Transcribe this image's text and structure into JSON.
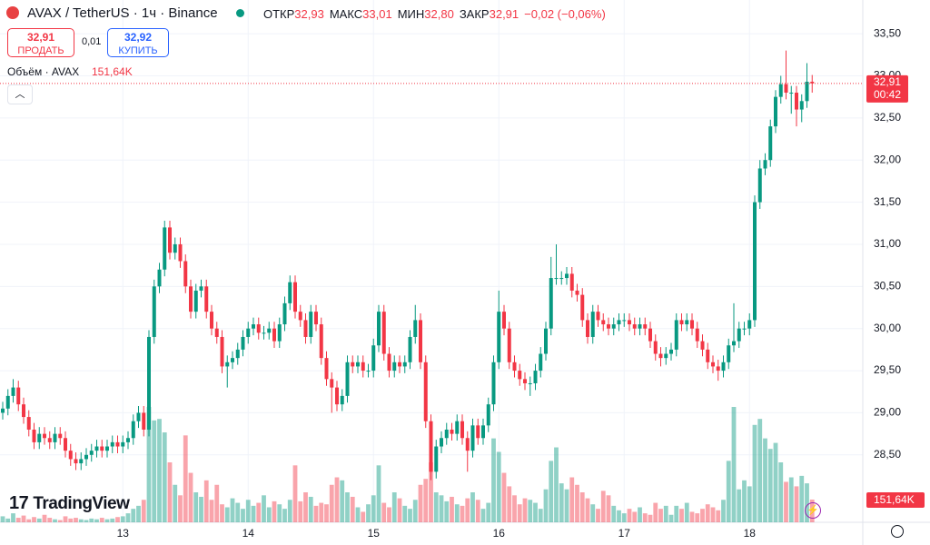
{
  "header": {
    "symbol": "AVAX / TetherUS · 1ч · Binance",
    "stats": [
      {
        "label": "ОТКР",
        "value": "32,93"
      },
      {
        "label": "МАКС",
        "value": "33,01"
      },
      {
        "label": "МИН",
        "value": "32,80"
      },
      {
        "label": "ЗАКР",
        "value": "32,91"
      }
    ],
    "change": "−0,02 (−0,06%)",
    "sell": {
      "price": "32,91",
      "label": "ПРОДАТЬ"
    },
    "spread": "0,01",
    "buy": {
      "price": "32,92",
      "label": "КУПИТЬ"
    },
    "volume_title": "Объём · AVAX",
    "volume_value": "151,64K"
  },
  "brand": "TradingView",
  "chart_data": {
    "type": "candlestick",
    "categories": [
      null,
      null,
      null,
      null,
      null,
      null,
      null,
      null,
      null,
      null,
      null,
      null,
      null,
      null,
      null,
      null,
      null,
      null,
      null,
      null,
      null,
      null,
      null,
      "13",
      null,
      null,
      null,
      null,
      null,
      null,
      null,
      null,
      null,
      null,
      null,
      null,
      null,
      null,
      null,
      null,
      null,
      null,
      null,
      null,
      null,
      null,
      null,
      "14",
      null,
      null,
      null,
      null,
      null,
      null,
      null,
      null,
      null,
      null,
      null,
      null,
      null,
      null,
      null,
      null,
      null,
      null,
      null,
      null,
      null,
      null,
      null,
      "15",
      null,
      null,
      null,
      null,
      null,
      null,
      null,
      null,
      null,
      null,
      null,
      null,
      null,
      null,
      null,
      null,
      null,
      null,
      null,
      null,
      null,
      null,
      null,
      "16",
      null,
      null,
      null,
      null,
      null,
      null,
      null,
      null,
      null,
      null,
      null,
      null,
      null,
      null,
      null,
      null,
      null,
      null,
      null,
      null,
      null,
      null,
      null,
      "17",
      null,
      null,
      null,
      null,
      null,
      null,
      null,
      null,
      null,
      null,
      null,
      null,
      null,
      null,
      null,
      null,
      null,
      null,
      null,
      null,
      null,
      null,
      null,
      "18",
      null,
      null,
      null,
      null,
      null,
      null,
      null,
      null,
      null,
      null,
      null,
      null
    ],
    "ohlc": [
      [
        29.0,
        29.13,
        28.92,
        29.05
      ],
      [
        29.05,
        29.28,
        28.97,
        29.2
      ],
      [
        29.2,
        29.4,
        29.12,
        29.3
      ],
      [
        29.3,
        29.38,
        29.02,
        29.1
      ],
      [
        29.1,
        29.18,
        28.87,
        28.95
      ],
      [
        28.95,
        29.03,
        28.72,
        28.8
      ],
      [
        28.8,
        28.88,
        28.57,
        28.65
      ],
      [
        28.65,
        28.83,
        28.57,
        28.75
      ],
      [
        28.75,
        28.83,
        28.62,
        28.7
      ],
      [
        28.7,
        28.78,
        28.57,
        28.65
      ],
      [
        28.65,
        28.83,
        28.57,
        28.75
      ],
      [
        28.75,
        28.83,
        28.62,
        28.7
      ],
      [
        28.7,
        28.78,
        28.47,
        28.55
      ],
      [
        28.55,
        28.63,
        28.37,
        28.45
      ],
      [
        28.45,
        28.53,
        28.32,
        28.4
      ],
      [
        28.4,
        28.53,
        28.32,
        28.45
      ],
      [
        28.45,
        28.58,
        28.37,
        28.5
      ],
      [
        28.5,
        28.63,
        28.42,
        28.55
      ],
      [
        28.55,
        28.68,
        28.47,
        28.6
      ],
      [
        28.6,
        28.68,
        28.47,
        28.55
      ],
      [
        28.55,
        28.68,
        28.47,
        28.6
      ],
      [
        28.6,
        28.73,
        28.52,
        28.65
      ],
      [
        28.65,
        28.73,
        28.52,
        28.6
      ],
      [
        28.6,
        28.73,
        28.52,
        28.65
      ],
      [
        28.65,
        28.78,
        28.57,
        28.7
      ],
      [
        28.7,
        28.98,
        28.62,
        28.9
      ],
      [
        28.9,
        29.08,
        28.82,
        29.0
      ],
      [
        29.0,
        29.08,
        28.72,
        28.8
      ],
      [
        28.8,
        29.98,
        28.72,
        29.9
      ],
      [
        29.9,
        30.58,
        29.82,
        30.5
      ],
      [
        30.5,
        30.78,
        30.42,
        30.7
      ],
      [
        30.7,
        31.28,
        30.62,
        31.2
      ],
      [
        31.2,
        31.28,
        30.82,
        30.9
      ],
      [
        30.9,
        31.08,
        30.82,
        31.0
      ],
      [
        31.0,
        31.08,
        30.72,
        30.8
      ],
      [
        30.8,
        30.88,
        30.42,
        30.5
      ],
      [
        30.5,
        30.58,
        30.12,
        30.2
      ],
      [
        30.2,
        30.53,
        30.12,
        30.45
      ],
      [
        30.45,
        30.58,
        30.37,
        30.5
      ],
      [
        30.5,
        30.58,
        30.12,
        30.2
      ],
      [
        30.2,
        30.28,
        29.92,
        30.0
      ],
      [
        30.0,
        30.08,
        29.82,
        29.9
      ],
      [
        29.9,
        29.98,
        29.47,
        29.55
      ],
      [
        29.55,
        29.68,
        29.3,
        29.6
      ],
      [
        29.6,
        29.73,
        29.52,
        29.65
      ],
      [
        29.65,
        29.83,
        29.57,
        29.75
      ],
      [
        29.75,
        29.98,
        29.67,
        29.9
      ],
      [
        29.9,
        30.08,
        29.82,
        30.0
      ],
      [
        30.0,
        30.13,
        29.92,
        30.05
      ],
      [
        30.05,
        30.13,
        29.87,
        29.95
      ],
      [
        29.95,
        30.03,
        29.87,
        29.95
      ],
      [
        29.95,
        30.08,
        29.87,
        30.0
      ],
      [
        30.0,
        30.08,
        29.77,
        29.85
      ],
      [
        29.85,
        30.13,
        29.77,
        30.05
      ],
      [
        30.05,
        30.38,
        29.97,
        30.3
      ],
      [
        30.3,
        30.63,
        30.22,
        30.55
      ],
      [
        30.55,
        30.63,
        30.12,
        30.2
      ],
      [
        30.2,
        30.28,
        30.02,
        30.1
      ],
      [
        30.1,
        30.18,
        29.82,
        29.9
      ],
      [
        29.9,
        30.28,
        29.82,
        30.2
      ],
      [
        30.2,
        30.28,
        29.97,
        30.05
      ],
      [
        30.05,
        30.13,
        29.57,
        29.65
      ],
      [
        29.65,
        29.73,
        29.32,
        29.4
      ],
      [
        29.4,
        29.48,
        29.0,
        29.3
      ],
      [
        29.3,
        29.38,
        29.02,
        29.1
      ],
      [
        29.1,
        29.28,
        29.02,
        29.2
      ],
      [
        29.2,
        29.68,
        29.12,
        29.6
      ],
      [
        29.6,
        29.68,
        29.47,
        29.55
      ],
      [
        29.55,
        29.68,
        29.47,
        29.6
      ],
      [
        29.6,
        29.68,
        29.42,
        29.5
      ],
      [
        29.5,
        29.58,
        29.42,
        29.5
      ],
      [
        29.5,
        29.88,
        29.42,
        29.8
      ],
      [
        29.8,
        30.28,
        29.72,
        30.2
      ],
      [
        30.2,
        30.28,
        29.62,
        29.7
      ],
      [
        29.7,
        29.78,
        29.42,
        29.5
      ],
      [
        29.5,
        29.68,
        29.42,
        29.6
      ],
      [
        29.6,
        29.68,
        29.47,
        29.55
      ],
      [
        29.55,
        29.68,
        29.47,
        29.6
      ],
      [
        29.6,
        29.98,
        29.52,
        29.9
      ],
      [
        29.9,
        30.28,
        29.82,
        30.1
      ],
      [
        30.1,
        30.18,
        29.52,
        29.6
      ],
      [
        29.6,
        29.68,
        28.82,
        28.9
      ],
      [
        28.9,
        28.98,
        28.2,
        28.3
      ],
      [
        28.3,
        28.68,
        28.22,
        28.6
      ],
      [
        28.6,
        28.78,
        28.52,
        28.7
      ],
      [
        28.7,
        28.88,
        28.62,
        28.8
      ],
      [
        28.8,
        28.88,
        28.67,
        28.75
      ],
      [
        28.75,
        28.98,
        28.67,
        28.9
      ],
      [
        28.9,
        28.98,
        28.62,
        28.7
      ],
      [
        28.7,
        28.78,
        28.3,
        28.55
      ],
      [
        28.55,
        28.93,
        28.47,
        28.85
      ],
      [
        28.85,
        28.93,
        28.62,
        28.7
      ],
      [
        28.7,
        28.93,
        28.62,
        28.85
      ],
      [
        28.85,
        29.18,
        28.77,
        29.1
      ],
      [
        29.1,
        29.68,
        29.02,
        29.6
      ],
      [
        29.6,
        30.45,
        29.52,
        30.2
      ],
      [
        30.2,
        30.28,
        29.92,
        30.0
      ],
      [
        30.0,
        30.08,
        29.52,
        29.6
      ],
      [
        29.6,
        29.68,
        29.42,
        29.5
      ],
      [
        29.5,
        29.58,
        29.32,
        29.4
      ],
      [
        29.4,
        29.48,
        29.27,
        29.35
      ],
      [
        29.35,
        29.43,
        29.2,
        29.35
      ],
      [
        29.35,
        29.58,
        29.27,
        29.5
      ],
      [
        29.5,
        29.78,
        29.42,
        29.7
      ],
      [
        29.7,
        30.08,
        29.62,
        30.0
      ],
      [
        30.0,
        30.85,
        29.92,
        30.6
      ],
      [
        30.6,
        31.0,
        30.52,
        30.6
      ],
      [
        30.6,
        30.68,
        30.52,
        30.6
      ],
      [
        30.6,
        30.73,
        30.52,
        30.65
      ],
      [
        30.65,
        30.73,
        30.37,
        30.45
      ],
      [
        30.45,
        30.53,
        30.32,
        30.4
      ],
      [
        30.4,
        30.48,
        30.02,
        30.1
      ],
      [
        30.1,
        30.18,
        29.82,
        29.9
      ],
      [
        29.9,
        30.28,
        29.82,
        30.2
      ],
      [
        30.2,
        30.28,
        30.02,
        30.1
      ],
      [
        30.1,
        30.18,
        29.97,
        30.05
      ],
      [
        30.05,
        30.13,
        29.92,
        30.0
      ],
      [
        30.0,
        30.13,
        29.92,
        30.05
      ],
      [
        30.05,
        30.18,
        29.97,
        30.1
      ],
      [
        30.1,
        30.18,
        30.02,
        30.1
      ],
      [
        30.1,
        30.18,
        29.97,
        30.05
      ],
      [
        30.05,
        30.13,
        29.92,
        30.0
      ],
      [
        30.0,
        30.13,
        29.92,
        30.05
      ],
      [
        30.05,
        30.13,
        29.92,
        30.0
      ],
      [
        30.0,
        30.08,
        29.77,
        29.85
      ],
      [
        29.85,
        29.93,
        29.62,
        29.7
      ],
      [
        29.7,
        29.78,
        29.55,
        29.65
      ],
      [
        29.65,
        29.78,
        29.57,
        29.7
      ],
      [
        29.7,
        29.83,
        29.62,
        29.75
      ],
      [
        29.75,
        30.18,
        29.67,
        30.1
      ],
      [
        30.1,
        30.18,
        29.97,
        30.05
      ],
      [
        30.05,
        30.18,
        29.97,
        30.1
      ],
      [
        30.1,
        30.18,
        29.92,
        30.0
      ],
      [
        30.0,
        30.08,
        29.77,
        29.85
      ],
      [
        29.85,
        29.93,
        29.67,
        29.75
      ],
      [
        29.75,
        29.83,
        29.52,
        29.6
      ],
      [
        29.6,
        29.68,
        29.47,
        29.55
      ],
      [
        29.55,
        29.63,
        29.38,
        29.5
      ],
      [
        29.5,
        29.68,
        29.42,
        29.6
      ],
      [
        29.6,
        29.88,
        29.52,
        29.8
      ],
      [
        29.8,
        30.3,
        29.72,
        29.85
      ],
      [
        29.85,
        30.08,
        29.77,
        30.0
      ],
      [
        30.0,
        30.08,
        29.92,
        30.0
      ],
      [
        30.0,
        30.18,
        29.92,
        30.1
      ],
      [
        30.1,
        31.58,
        30.02,
        31.5
      ],
      [
        31.5,
        32.0,
        31.42,
        31.9
      ],
      [
        31.9,
        32.08,
        31.82,
        32.0
      ],
      [
        32.0,
        32.48,
        31.92,
        32.4
      ],
      [
        32.4,
        32.83,
        32.32,
        32.75
      ],
      [
        32.75,
        33.0,
        32.67,
        32.9
      ],
      [
        32.9,
        33.3,
        32.72,
        32.8
      ],
      [
        32.8,
        32.88,
        32.55,
        32.8
      ],
      [
        32.8,
        32.88,
        32.4,
        32.6
      ],
      [
        32.6,
        32.78,
        32.45,
        32.7
      ],
      [
        32.7,
        33.15,
        32.62,
        32.93
      ],
      [
        32.93,
        33.01,
        32.8,
        32.91
      ]
    ],
    "volume": {
      "values": [
        40,
        25,
        60,
        30,
        45,
        20,
        35,
        25,
        50,
        30,
        20,
        15,
        40,
        25,
        30,
        20,
        15,
        25,
        20,
        30,
        20,
        25,
        35,
        40,
        60,
        90,
        110,
        150,
        770,
        680,
        690,
        600,
        400,
        250,
        180,
        580,
        330,
        200,
        170,
        280,
        150,
        250,
        120,
        100,
        160,
        130,
        90,
        150,
        110,
        130,
        180,
        100,
        140,
        120,
        90,
        150,
        380,
        140,
        200,
        170,
        110,
        130,
        120,
        250,
        300,
        280,
        200,
        170,
        100,
        70,
        120,
        180,
        380,
        130,
        100,
        200,
        160,
        110,
        90,
        150,
        250,
        290,
        400,
        200,
        180,
        140,
        170,
        120,
        110,
        160,
        200,
        150,
        90,
        130,
        560,
        470,
        330,
        240,
        180,
        120,
        160,
        150,
        130,
        90,
        220,
        410,
        500,
        260,
        220,
        300,
        250,
        200,
        160,
        120,
        90,
        210,
        180,
        110,
        80,
        60,
        90,
        70,
        100,
        60,
        50,
        130,
        90,
        110,
        50,
        110,
        90,
        130,
        70,
        60,
        90,
        120,
        100,
        80,
        150,
        410,
        770,
        220,
        280,
        240,
        650,
        690,
        560,
        490,
        530,
        400,
        270,
        300,
        240,
        310,
        260,
        151.64
      ]
    },
    "volume_label": "151,64K",
    "last_price": {
      "value": 32.91,
      "label": "32,91"
    },
    "countdown": "00:42",
    "ylim": [
      27.7,
      33.9
    ],
    "yticks": [
      {
        "value": 28.5,
        "label": "28,50"
      },
      {
        "value": 29,
        "label": "29,00"
      },
      {
        "value": 29.5,
        "label": "29,50"
      },
      {
        "value": 30,
        "label": "30,00"
      },
      {
        "value": 30.5,
        "label": "30,50"
      },
      {
        "value": 31,
        "label": "31,00"
      },
      {
        "value": 31.5,
        "label": "31,50"
      },
      {
        "value": 32,
        "label": "32,00"
      },
      {
        "value": 32.5,
        "label": "32,50"
      },
      {
        "value": 33,
        "label": "33,00"
      },
      {
        "value": 33.5,
        "label": "33,50"
      }
    ],
    "grid": true,
    "up_color": "#089981",
    "down_color": "#f23645"
  }
}
